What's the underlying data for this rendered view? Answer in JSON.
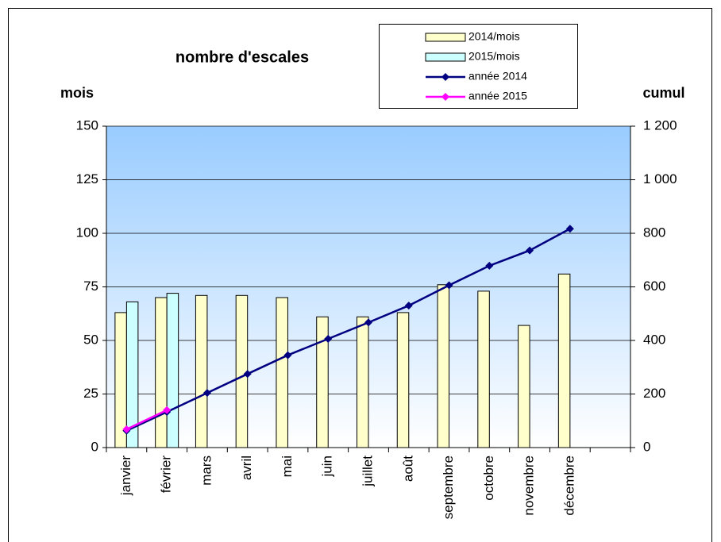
{
  "chart_data": {
    "type": "bar-line",
    "title": "nombre d'escales",
    "y_label": "mois",
    "y2_label": "cumul",
    "categories": [
      "janvier",
      "février",
      "mars",
      "avril",
      "mai",
      "juin",
      "juillet",
      "août",
      "septembre",
      "octobre",
      "novembre",
      "décembre",
      null
    ],
    "ylim": [
      0,
      150
    ],
    "yticks": [
      0,
      25,
      50,
      75,
      100,
      125,
      150
    ],
    "y2lim": [
      0,
      1200
    ],
    "y2ticks": [
      0,
      200,
      400,
      600,
      800,
      {
        "value": 1000,
        "label": "1 000"
      },
      {
        "value": 1200,
        "label": "1 200"
      }
    ],
    "grid": true,
    "series": [
      {
        "name": "2014/mois",
        "type": "bar",
        "color": "#ffffcc",
        "values": [
          63,
          70,
          71,
          71,
          70,
          61,
          61,
          63,
          76,
          73,
          57,
          81,
          null
        ]
      },
      {
        "name": "2015/mois",
        "type": "bar",
        "color": "#ccffff",
        "values": [
          68,
          72,
          null,
          null,
          null,
          null,
          null,
          null,
          null,
          null,
          null,
          null,
          null
        ]
      },
      {
        "name": "année 2014",
        "type": "line",
        "axis": "y2",
        "color": "#000080",
        "values": [
          63,
          133,
          204,
          275,
          345,
          406,
          467,
          530,
          606,
          679,
          736,
          817,
          null
        ]
      },
      {
        "name": "année 2015",
        "type": "line",
        "axis": "y2",
        "color": "#ff00ff",
        "values": [
          68,
          140,
          null,
          null,
          null,
          null,
          null,
          null,
          null,
          null,
          null,
          null,
          null
        ]
      }
    ]
  }
}
